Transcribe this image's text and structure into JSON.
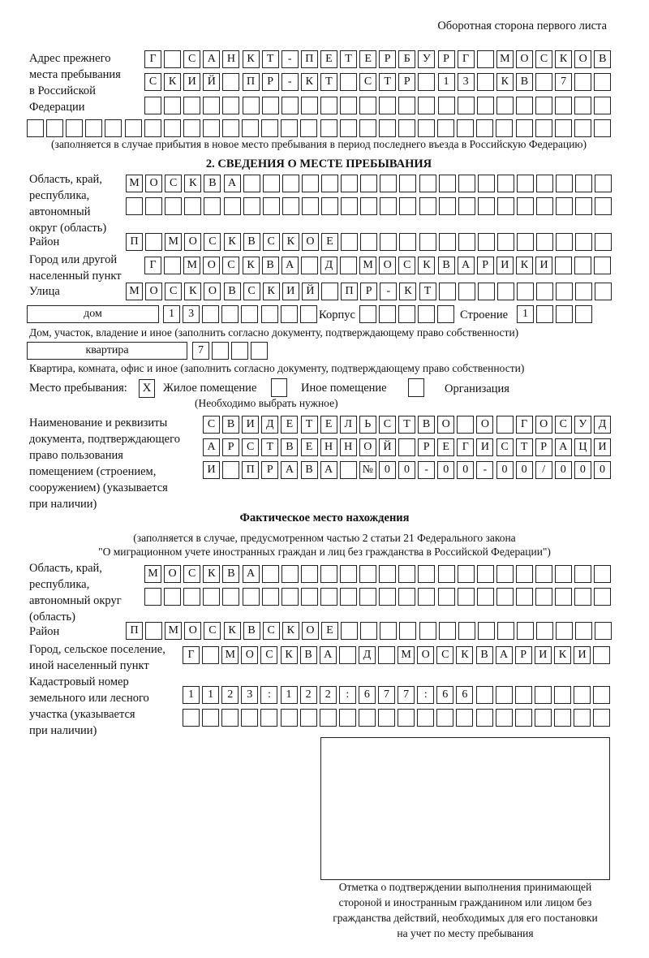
{
  "header": {
    "sheet_side": "Оборотная сторона первого листа"
  },
  "previous_address": {
    "label": [
      "Адрес прежнего",
      "места пребывания",
      "в Российской",
      "Федерации"
    ],
    "rows": [
      "Г САНКТ-ПЕТЕРБУРГ МОСКОВ",
      "СКИЙ ПР-КТ СТР 13 КВ 7  ",
      "                        ",
      "                              "
    ],
    "note": "(заполняется в случае прибытия в новое место пребывания в период последнего въезда в Российскую Федерацию)"
  },
  "section2": {
    "title": "2. СВЕДЕНИЯ О МЕСТЕ ПРЕБЫВАНИЯ",
    "region_label": [
      "Область, край,",
      "республика,",
      "автономный",
      "округ (область)"
    ],
    "region_rows": [
      "МОСКВА                   ",
      "                         "
    ],
    "district_label": "Район",
    "district_row": "П МОСКВСКОЕ              ",
    "city_label": [
      "Город или другой",
      "населенный пункт"
    ],
    "city_row": "Г МОСКВА Д МОСКВАРИКИ   ",
    "street_label": "Улица",
    "street_row": "МОСКОВСКИЙ ПР-КТ         ",
    "house_type": "дом",
    "house_row": "13      ",
    "korpus_label": "Корпус",
    "korpus_row": "     ",
    "building_label": "Строение",
    "building_row": "1   ",
    "house_note": "Дом, участок, владение и иное (заполнить согласно документу, подтверждающему право собственности)",
    "apartment_type": "квартира",
    "apartment_row": "7   ",
    "apartment_note": "Квартира, комната, офис и иное (заполнить согласно документу, подтверждающему право собственности)",
    "stay_place_label": "Место пребывания:",
    "stay_options": [
      {
        "label": "Жилое помещение",
        "mark": "X"
      },
      {
        "label": "Иное помещение",
        "mark": ""
      },
      {
        "label": "Организация",
        "mark": ""
      }
    ],
    "stay_note": "(Необходимо выбрать нужное)",
    "document_label": [
      "Наименование и реквизиты",
      "документа, подтверждающего",
      "право пользования",
      "помещением (строением,",
      "сооружением) (указывается",
      "при наличии)"
    ],
    "document_rows": [
      "СВИДЕТЕЛЬСТВО О ГОСУД",
      "АРСТВЕННОЙ РЕГИСТРАЦИ",
      "И ПРАВА №00-00-00/000"
    ]
  },
  "actual_location": {
    "title": "Фактическое место нахождения",
    "note1": "(заполняется в случае, предусмотренном частью 2 статьи 21 Федерального закона",
    "note2": "\"О миграционном учете иностранных граждан и лиц без гражданства в Российской Федерации\")",
    "region_label": [
      "Область, край,",
      "республика,",
      "автономный округ",
      "(область)"
    ],
    "region_rows": [
      "МОСКВА                  ",
      "                        "
    ],
    "district_label": "Район",
    "district_row": "П МОСКВСКОЕ              ",
    "city_label": [
      "Город, сельское поселение,",
      "иной населенный пункт"
    ],
    "city_row": "Г МОСКВА Д МОСКВАРИКИ ",
    "cadastre_label": [
      "Кадастровый номер",
      "земельного или лесного",
      "участка (указывается",
      "при наличии)"
    ],
    "cadastre_rows": [
      "1123:122:677:66       ",
      "                      "
    ]
  },
  "confirmation": {
    "caption": [
      "Отметка о подтверждении выполнения принимающей",
      "стороной и иностранным гражданином или лицом без",
      "гражданства действий, необходимых для его постановки",
      "на учет по месту пребывания"
    ]
  }
}
